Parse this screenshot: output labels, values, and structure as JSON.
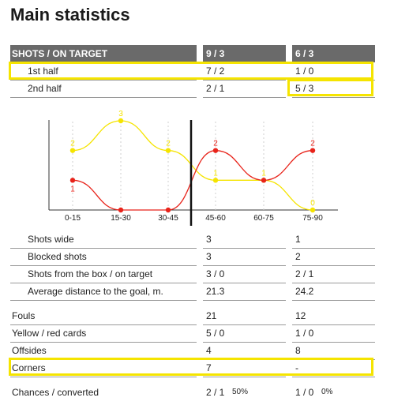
{
  "title": "Main statistics",
  "header": {
    "label": "SHOTS / ON TARGET",
    "team1": "9 / 3",
    "team2": "6 / 3"
  },
  "half_rows": [
    {
      "label": "1st half",
      "team1": "7 / 2",
      "team2": "1 / 0"
    },
    {
      "label": "2nd half",
      "team1": "2 / 1",
      "team2": "5 / 3"
    }
  ],
  "chart_data": {
    "type": "line",
    "categories": [
      "0-15",
      "15-30",
      "30-45",
      "45-60",
      "60-75",
      "75-90"
    ],
    "series": [
      {
        "color": "#f5e400",
        "values": [
          2,
          3,
          2,
          1,
          1,
          0
        ]
      },
      {
        "color": "#e8231a",
        "values": [
          1,
          0,
          0,
          2,
          1,
          2
        ]
      }
    ],
    "point_labels": [
      [
        "2",
        "3",
        "2",
        "1",
        "1",
        "0"
      ],
      [
        "1",
        "",
        "",
        "2",
        "",
        "2"
      ]
    ],
    "ylim": [
      0,
      3
    ],
    "divider_after_index": 2
  },
  "stats_group1": [
    {
      "label": "Shots wide",
      "team1": "3",
      "team2": "1"
    },
    {
      "label": "Blocked shots",
      "team1": "3",
      "team2": "2"
    },
    {
      "label": "Shots from the box / on target",
      "team1": "3 / 0",
      "team2": "2 / 1"
    },
    {
      "label": "Average distance to the goal, m.",
      "team1": "21.3",
      "team2": "24.2"
    }
  ],
  "stats_group2": [
    {
      "label": "Fouls",
      "team1": "21",
      "team2": "12"
    },
    {
      "label": "Yellow / red cards",
      "team1": "5 / 0",
      "team2": "1 / 0"
    },
    {
      "label": "Offsides",
      "team1": "4",
      "team2": "8"
    },
    {
      "label": "Corners",
      "team1": "7",
      "team2": "-"
    }
  ],
  "chances": {
    "label": "Chances / converted",
    "team1": "2 / 1",
    "team1_pct": "50%",
    "team2": "1 / 0",
    "team2_pct": "0%"
  },
  "colors": {
    "highlight": "#f5e400",
    "header_bg": "#6a6a6a",
    "team1_line": "#f5e400",
    "team2_line": "#e8231a"
  }
}
